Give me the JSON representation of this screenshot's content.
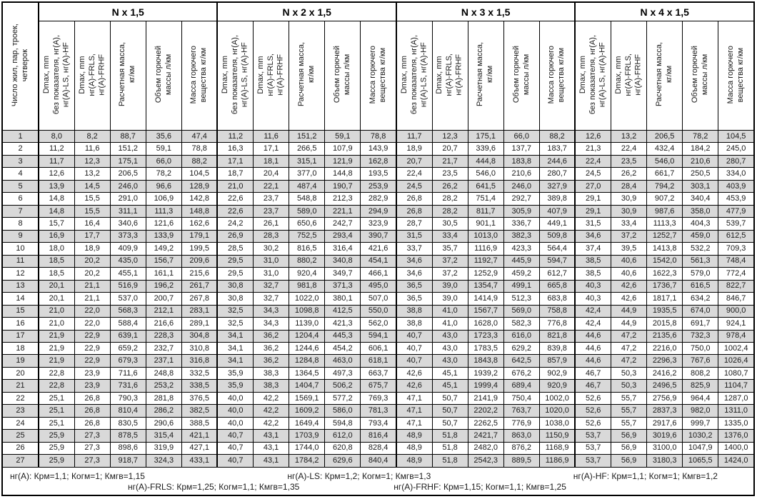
{
  "table": {
    "index_header": "Число жил, пар, троек,\nчетверок",
    "groups": [
      "N x 1,5",
      "N x 2 x 1,5",
      "N x 3 x 1,5",
      "N x 4 x 1,5"
    ],
    "subheaders": [
      "Dmax, mm\nбез показателя, нг(A),\nнг(A)-LS, нг(A)-HF",
      "Dmax, mm\nнг(A)-FRLS,\nнг(A)-FRHF",
      "Расчетная масса,\nкг/км",
      "Объем горючей\nмассы л/км",
      "Масса горючего\nвещества кг/км"
    ],
    "rows": [
      {
        "n": "1",
        "v": [
          "8,0",
          "8,2",
          "88,7",
          "35,6",
          "47,4",
          "11,2",
          "11,6",
          "151,2",
          "59,1",
          "78,8",
          "11,7",
          "12,3",
          "175,1",
          "66,0",
          "88,2",
          "12,6",
          "13,2",
          "206,5",
          "78,2",
          "104,5"
        ]
      },
      {
        "n": "2",
        "v": [
          "11,2",
          "11,6",
          "151,2",
          "59,1",
          "78,8",
          "16,3",
          "17,1",
          "266,5",
          "107,9",
          "143,9",
          "18,9",
          "20,7",
          "339,6",
          "137,7",
          "183,7",
          "21,3",
          "22,4",
          "432,4",
          "184,2",
          "245,0"
        ]
      },
      {
        "n": "3",
        "v": [
          "11,7",
          "12,3",
          "175,1",
          "66,0",
          "88,2",
          "17,1",
          "18,1",
          "315,1",
          "121,9",
          "162,8",
          "20,7",
          "21,7",
          "444,8",
          "183,8",
          "244,6",
          "22,4",
          "23,5",
          "546,0",
          "210,6",
          "280,7"
        ]
      },
      {
        "n": "4",
        "v": [
          "12,6",
          "13,2",
          "206,5",
          "78,2",
          "104,5",
          "18,7",
          "20,4",
          "377,0",
          "144,8",
          "193,5",
          "22,4",
          "23,5",
          "546,0",
          "210,6",
          "280,7",
          "24,5",
          "26,2",
          "661,7",
          "250,5",
          "334,0"
        ]
      },
      {
        "n": "5",
        "v": [
          "13,9",
          "14,5",
          "246,0",
          "96,6",
          "128,9",
          "21,0",
          "22,1",
          "487,4",
          "190,7",
          "253,9",
          "24,5",
          "26,2",
          "641,5",
          "246,0",
          "327,9",
          "27,0",
          "28,4",
          "794,2",
          "303,1",
          "403,9"
        ]
      },
      {
        "n": "6",
        "v": [
          "14,8",
          "15,5",
          "291,0",
          "106,9",
          "142,8",
          "22,6",
          "23,7",
          "548,8",
          "212,3",
          "282,9",
          "26,8",
          "28,2",
          "751,4",
          "292,7",
          "389,8",
          "29,1",
          "30,9",
          "907,2",
          "340,4",
          "453,9"
        ]
      },
      {
        "n": "7",
        "v": [
          "14,8",
          "15,5",
          "311,1",
          "111,3",
          "148,8",
          "22,6",
          "23,7",
          "589,0",
          "221,1",
          "294,9",
          "26,8",
          "28,2",
          "811,7",
          "305,9",
          "407,9",
          "29,1",
          "30,9",
          "987,6",
          "358,0",
          "477,9"
        ]
      },
      {
        "n": "8",
        "v": [
          "15,7",
          "16,4",
          "340,6",
          "121,6",
          "162,6",
          "24,2",
          "26,1",
          "650,6",
          "242,7",
          "323,9",
          "28,7",
          "30,5",
          "901,1",
          "336,7",
          "449,1",
          "31,5",
          "33,4",
          "1113,3",
          "404,3",
          "539,7"
        ]
      },
      {
        "n": "9",
        "v": [
          "16,9",
          "17,7",
          "373,3",
          "133,9",
          "179,1",
          "26,9",
          "28,3",
          "752,5",
          "293,4",
          "390,7",
          "31,5",
          "33,4",
          "1013,0",
          "382,3",
          "509,8",
          "34,6",
          "37,2",
          "1252,7",
          "459,0",
          "612,5"
        ]
      },
      {
        "n": "10",
        "v": [
          "18,0",
          "18,9",
          "409,9",
          "149,2",
          "199,5",
          "28,5",
          "30,2",
          "816,5",
          "316,4",
          "421,6",
          "33,7",
          "35,7",
          "1116,9",
          "423,3",
          "564,4",
          "37,4",
          "39,5",
          "1413,8",
          "532,2",
          "709,3"
        ]
      },
      {
        "n": "11",
        "v": [
          "18,5",
          "20,2",
          "435,0",
          "156,7",
          "209,6",
          "29,5",
          "31,0",
          "880,2",
          "340,8",
          "454,1",
          "34,6",
          "37,2",
          "1192,7",
          "445,9",
          "594,7",
          "38,5",
          "40,6",
          "1542,0",
          "561,3",
          "748,4"
        ]
      },
      {
        "n": "12",
        "v": [
          "18,5",
          "20,2",
          "455,1",
          "161,1",
          "215,6",
          "29,5",
          "31,0",
          "920,4",
          "349,7",
          "466,1",
          "34,6",
          "37,2",
          "1252,9",
          "459,2",
          "612,7",
          "38,5",
          "40,6",
          "1622,3",
          "579,0",
          "772,4"
        ]
      },
      {
        "n": "13",
        "v": [
          "20,1",
          "21,1",
          "516,9",
          "196,2",
          "261,7",
          "30,8",
          "32,7",
          "981,8",
          "371,3",
          "495,0",
          "36,5",
          "39,0",
          "1354,7",
          "499,1",
          "665,8",
          "40,3",
          "42,6",
          "1736,7",
          "616,5",
          "822,7"
        ]
      },
      {
        "n": "14",
        "v": [
          "20,1",
          "21,1",
          "537,0",
          "200,7",
          "267,8",
          "30,8",
          "32,7",
          "1022,0",
          "380,1",
          "507,0",
          "36,5",
          "39,0",
          "1414,9",
          "512,3",
          "683,8",
          "40,3",
          "42,6",
          "1817,1",
          "634,2",
          "846,7"
        ]
      },
      {
        "n": "15",
        "v": [
          "21,0",
          "22,0",
          "568,3",
          "212,1",
          "283,1",
          "32,5",
          "34,3",
          "1098,8",
          "412,5",
          "550,0",
          "38,8",
          "41,0",
          "1567,7",
          "569,0",
          "758,8",
          "42,4",
          "44,9",
          "1935,5",
          "674,0",
          "900,0"
        ]
      },
      {
        "n": "16",
        "v": [
          "21,0",
          "22,0",
          "588,4",
          "216,6",
          "289,1",
          "32,5",
          "34,3",
          "1139,0",
          "421,3",
          "562,0",
          "38,8",
          "41,0",
          "1628,0",
          "582,3",
          "776,8",
          "42,4",
          "44,9",
          "2015,8",
          "691,7",
          "924,1"
        ]
      },
      {
        "n": "17",
        "v": [
          "21,9",
          "22,9",
          "639,1",
          "228,3",
          "304,8",
          "34,1",
          "36,2",
          "1204,4",
          "445,3",
          "594,1",
          "40,7",
          "43,0",
          "1723,3",
          "616,0",
          "821,8",
          "44,6",
          "47,2",
          "2135,6",
          "732,3",
          "978,4"
        ]
      },
      {
        "n": "18",
        "v": [
          "21,9",
          "22,9",
          "659,2",
          "232,7",
          "310,8",
          "34,1",
          "36,2",
          "1244,6",
          "454,2",
          "606,1",
          "40,7",
          "43,0",
          "1783,5",
          "629,2",
          "839,8",
          "44,6",
          "47,2",
          "2216,0",
          "750,0",
          "1002,4"
        ]
      },
      {
        "n": "19",
        "v": [
          "21,9",
          "22,9",
          "679,3",
          "237,1",
          "316,8",
          "34,1",
          "36,2",
          "1284,8",
          "463,0",
          "618,1",
          "40,7",
          "43,0",
          "1843,8",
          "642,5",
          "857,9",
          "44,6",
          "47,2",
          "2296,3",
          "767,6",
          "1026,4"
        ]
      },
      {
        "n": "20",
        "v": [
          "22,8",
          "23,9",
          "711,6",
          "248,8",
          "332,5",
          "35,9",
          "38,3",
          "1364,5",
          "497,3",
          "663,7",
          "42,6",
          "45,1",
          "1939,2",
          "676,2",
          "902,9",
          "46,7",
          "50,3",
          "2416,2",
          "808,2",
          "1080,7"
        ]
      },
      {
        "n": "21",
        "v": [
          "22,8",
          "23,9",
          "731,6",
          "253,2",
          "338,5",
          "35,9",
          "38,3",
          "1404,7",
          "506,2",
          "675,7",
          "42,6",
          "45,1",
          "1999,4",
          "689,4",
          "920,9",
          "46,7",
          "50,3",
          "2496,5",
          "825,9",
          "1104,7"
        ]
      },
      {
        "n": "22",
        "v": [
          "25,1",
          "26,8",
          "790,3",
          "281,8",
          "376,5",
          "40,0",
          "42,2",
          "1569,1",
          "577,2",
          "769,3",
          "47,1",
          "50,7",
          "2141,9",
          "750,4",
          "1002,0",
          "52,6",
          "55,7",
          "2756,9",
          "964,4",
          "1287,0"
        ]
      },
      {
        "n": "23",
        "v": [
          "25,1",
          "26,8",
          "810,4",
          "286,2",
          "382,5",
          "40,0",
          "42,2",
          "1609,2",
          "586,0",
          "781,3",
          "47,1",
          "50,7",
          "2202,2",
          "763,7",
          "1020,0",
          "52,6",
          "55,7",
          "2837,3",
          "982,0",
          "1311,0"
        ]
      },
      {
        "n": "24",
        "v": [
          "25,1",
          "26,8",
          "830,5",
          "290,6",
          "388,5",
          "40,0",
          "42,2",
          "1649,4",
          "594,8",
          "793,4",
          "47,1",
          "50,7",
          "2262,5",
          "776,9",
          "1038,0",
          "52,6",
          "55,7",
          "2917,6",
          "999,7",
          "1335,0"
        ]
      },
      {
        "n": "25",
        "v": [
          "25,9",
          "27,3",
          "878,5",
          "315,4",
          "421,1",
          "40,7",
          "43,1",
          "1703,9",
          "612,0",
          "816,4",
          "48,9",
          "51,8",
          "2421,7",
          "863,0",
          "1150,9",
          "53,7",
          "56,9",
          "3019,6",
          "1030,2",
          "1376,0"
        ]
      },
      {
        "n": "26",
        "v": [
          "25,9",
          "27,3",
          "898,6",
          "319,9",
          "427,1",
          "40,7",
          "43,1",
          "1744,0",
          "620,8",
          "828,4",
          "48,9",
          "51,8",
          "2482,0",
          "876,2",
          "1168,9",
          "53,7",
          "56,9",
          "3100,0",
          "1047,9",
          "1400,0"
        ]
      },
      {
        "n": "27",
        "v": [
          "25,9",
          "27,3",
          "918,7",
          "324,3",
          "433,1",
          "40,7",
          "43,1",
          "1784,2",
          "629,6",
          "840,4",
          "48,9",
          "51,8",
          "2542,3",
          "889,5",
          "1186,9",
          "53,7",
          "56,9",
          "3180,3",
          "1065,5",
          "1424,0"
        ]
      }
    ]
  },
  "footer": {
    "line1": [
      "нг(A): Крм=1,1;  Когм=1;  Кмгв=1,15",
      "нг(A)-LS: Крм=1,2;  Когм=1;  Кмгв=1,3",
      "нг(A)-HF: Крм=1,1;  Когм=1;  Кмгв=1,2"
    ],
    "line2": [
      "нг(A)-FRLS: Крм=1,25;  Когм=1,1;  Кмгв=1,35",
      "нг(A)-FRHF: Крм=1,15;  Когм=1,1;  Кмгв=1,25"
    ]
  },
  "colors": {
    "row_shade": "#d9d9d9",
    "border": "#000000",
    "background": "#ffffff"
  }
}
